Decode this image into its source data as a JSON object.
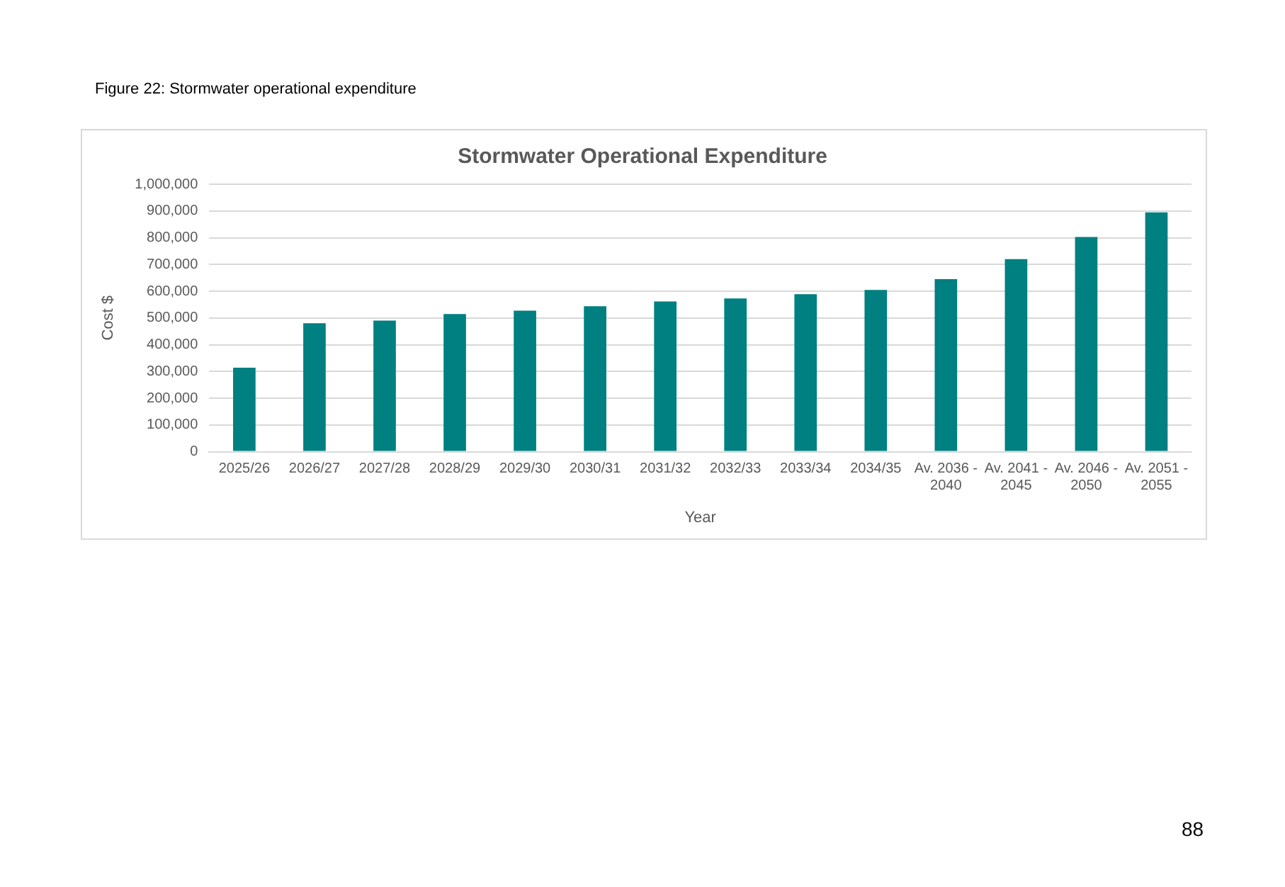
{
  "chart_data": {
    "type": "bar",
    "title": "Stormwater Operational Expenditure",
    "xlabel": "Year",
    "ylabel": "Cost $",
    "categories": [
      "2025/26",
      "2026/27",
      "2027/28",
      "2028/29",
      "2029/30",
      "2030/31",
      "2031/32",
      "2032/33",
      "2033/34",
      "2034/35",
      "Av. 2036 - 2040",
      "Av. 2041 - 2045",
      "Av. 2046 - 2050",
      "Av. 2051 - 2055"
    ],
    "values": [
      314000,
      480000,
      490000,
      515000,
      527000,
      544000,
      562000,
      573000,
      589000,
      605000,
      645000,
      720000,
      803000,
      895000
    ],
    "color": "#008080",
    "ylim": [
      0,
      1000000
    ],
    "yticks": [
      0,
      {
        "value": 100000,
        "label": "100,000"
      },
      {
        "value": 200000,
        "label": "200,000"
      },
      {
        "value": 300000,
        "label": "300,000"
      },
      {
        "value": 400000,
        "label": "400,000"
      },
      {
        "value": 500000,
        "label": "500,000"
      },
      {
        "value": 600000,
        "label": "600,000"
      },
      {
        "value": 700000,
        "label": "700,000"
      },
      {
        "value": 800000,
        "label": "800,000"
      },
      {
        "value": 900000,
        "label": "900,000"
      },
      {
        "value": 1000000,
        "label": "1,000,000"
      }
    ],
    "grid": "y",
    "annotations": [
      "Figure 22: Stormwater operational expenditure",
      "88"
    ]
  }
}
